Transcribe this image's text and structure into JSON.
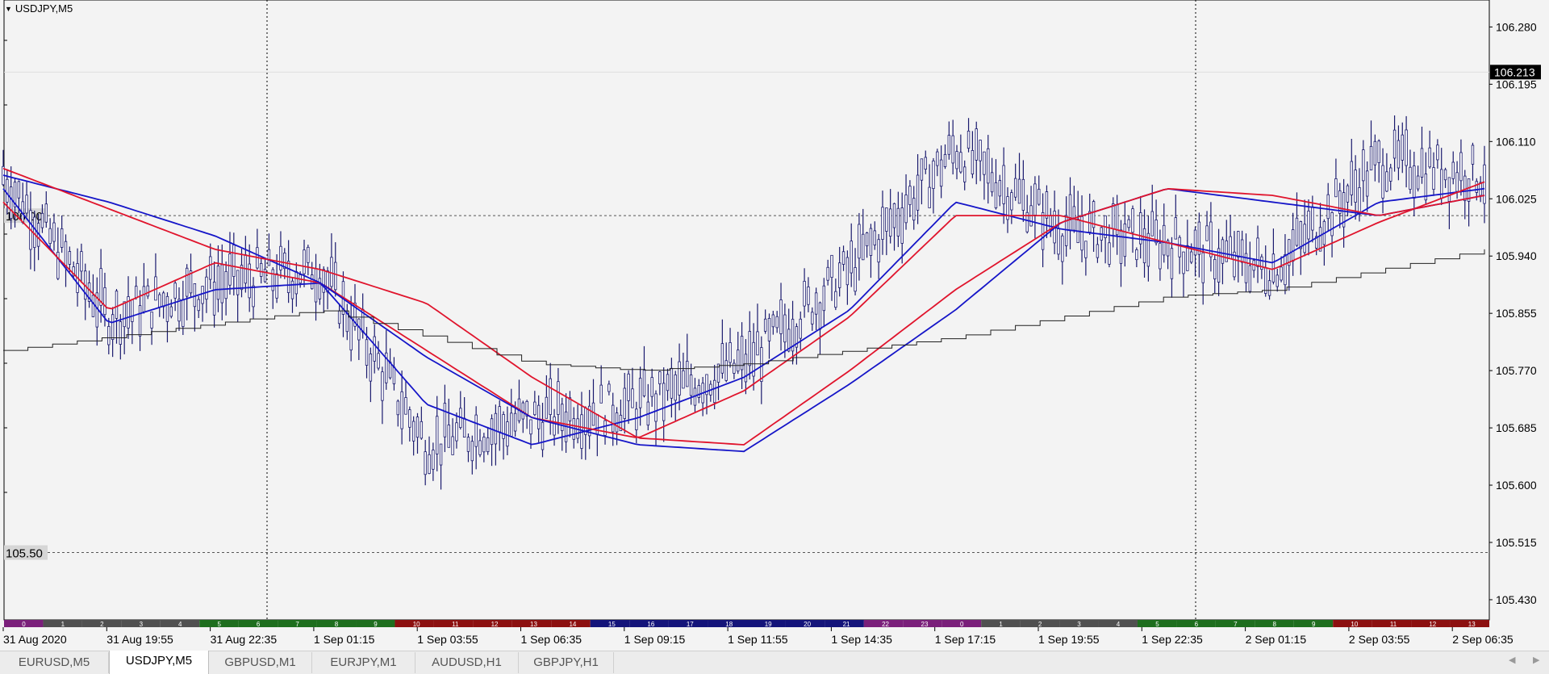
{
  "window": {
    "title": "USDJPY,M5"
  },
  "price_axis": {
    "labels": [
      "106.280",
      "106.195",
      "106.110",
      "106.025",
      "105.940",
      "105.855",
      "105.770",
      "105.685",
      "105.600",
      "105.515",
      "105.430"
    ],
    "current_price": "106.213"
  },
  "levels": {
    "upper": "106.00",
    "lower": "105.50"
  },
  "time_axis": {
    "labels": [
      "31 Aug 2020",
      "31 Aug 19:55",
      "31 Aug 22:35",
      "1 Sep 01:15",
      "1 Sep 03:55",
      "1 Sep 06:35",
      "1 Sep 09:15",
      "1 Sep 11:55",
      "1 Sep 14:35",
      "1 Sep 17:15",
      "1 Sep 19:55",
      "1 Sep 22:35",
      "2 Sep 01:15",
      "2 Sep 03:55",
      "2 Sep 06:35"
    ]
  },
  "session_strip": {
    "hours": [
      "0",
      "1",
      "2",
      "3",
      "4",
      "5",
      "6",
      "7",
      "8",
      "9",
      "10",
      "11",
      "12",
      "13",
      "14",
      "15",
      "16",
      "17",
      "18",
      "19",
      "20",
      "21",
      "22",
      "23",
      "0",
      "1",
      "2",
      "3",
      "4",
      "5",
      "6",
      "7",
      "8",
      "9",
      "10",
      "11",
      "12",
      "13"
    ],
    "colors": {
      "asia": "#7a1f7a",
      "gray": "#505050",
      "europe": "#1e6e1e",
      "us": "#8c1010",
      "navy": "#14147a"
    }
  },
  "tabs": [
    {
      "label": "EURUSD,M5",
      "active": false
    },
    {
      "label": "USDJPY,M5",
      "active": true
    },
    {
      "label": "GBPUSD,M1",
      "active": false
    },
    {
      "label": "EURJPY,M1",
      "active": false
    },
    {
      "label": "AUDUSD,H1",
      "active": false
    },
    {
      "label": "GBPJPY,H1",
      "active": false
    }
  ],
  "chart_data": {
    "type": "line",
    "symbol": "USDJPY",
    "timeframe": "M5",
    "ylim": [
      105.4,
      106.32
    ],
    "x": [
      "31 Aug 2020",
      "31 Aug 19:55",
      "31 Aug 22:35",
      "1 Sep 01:15",
      "1 Sep 03:55",
      "1 Sep 06:35",
      "1 Sep 09:15",
      "1 Sep 11:55",
      "1 Sep 14:35",
      "1 Sep 17:15",
      "1 Sep 19:55",
      "1 Sep 22:35",
      "2 Sep 01:15",
      "2 Sep 03:55",
      "2 Sep 06:35"
    ],
    "series": [
      {
        "color": "#1a1a6e",
        "values": [
          106.06,
          105.85,
          105.9,
          105.92,
          105.66,
          105.7,
          105.72,
          105.78,
          105.92,
          106.1,
          105.98,
          105.96,
          105.92,
          106.08,
          106.06
        ]
      },
      {
        "color": "#1515c8",
        "values": [
          106.04,
          105.84,
          105.89,
          105.9,
          105.72,
          105.66,
          105.7,
          105.76,
          105.86,
          106.02,
          105.98,
          105.96,
          105.93,
          106.02,
          106.04
        ]
      },
      {
        "color": "#e0142c",
        "values": [
          106.02,
          105.86,
          105.93,
          105.9,
          105.8,
          105.7,
          105.67,
          105.74,
          105.85,
          106.0,
          106.0,
          105.96,
          105.92,
          105.99,
          106.05
        ]
      },
      {
        "color": "#1515c8",
        "values": [
          106.06,
          106.02,
          105.97,
          105.9,
          105.79,
          105.7,
          105.66,
          105.65,
          105.75,
          105.86,
          105.99,
          106.04,
          106.02,
          106.0,
          106.03
        ]
      },
      {
        "color": "#e0142c",
        "values": [
          106.07,
          106.01,
          105.95,
          105.92,
          105.87,
          105.76,
          105.67,
          105.66,
          105.77,
          105.89,
          105.99,
          106.04,
          106.03,
          106.0,
          106.03
        ]
      },
      {
        "color": "#202020",
        "values": [
          105.8,
          105.82,
          105.84,
          105.86,
          105.82,
          105.78,
          105.77,
          105.78,
          105.8,
          105.82,
          105.85,
          105.88,
          105.89,
          105.92,
          105.95
        ]
      }
    ]
  }
}
